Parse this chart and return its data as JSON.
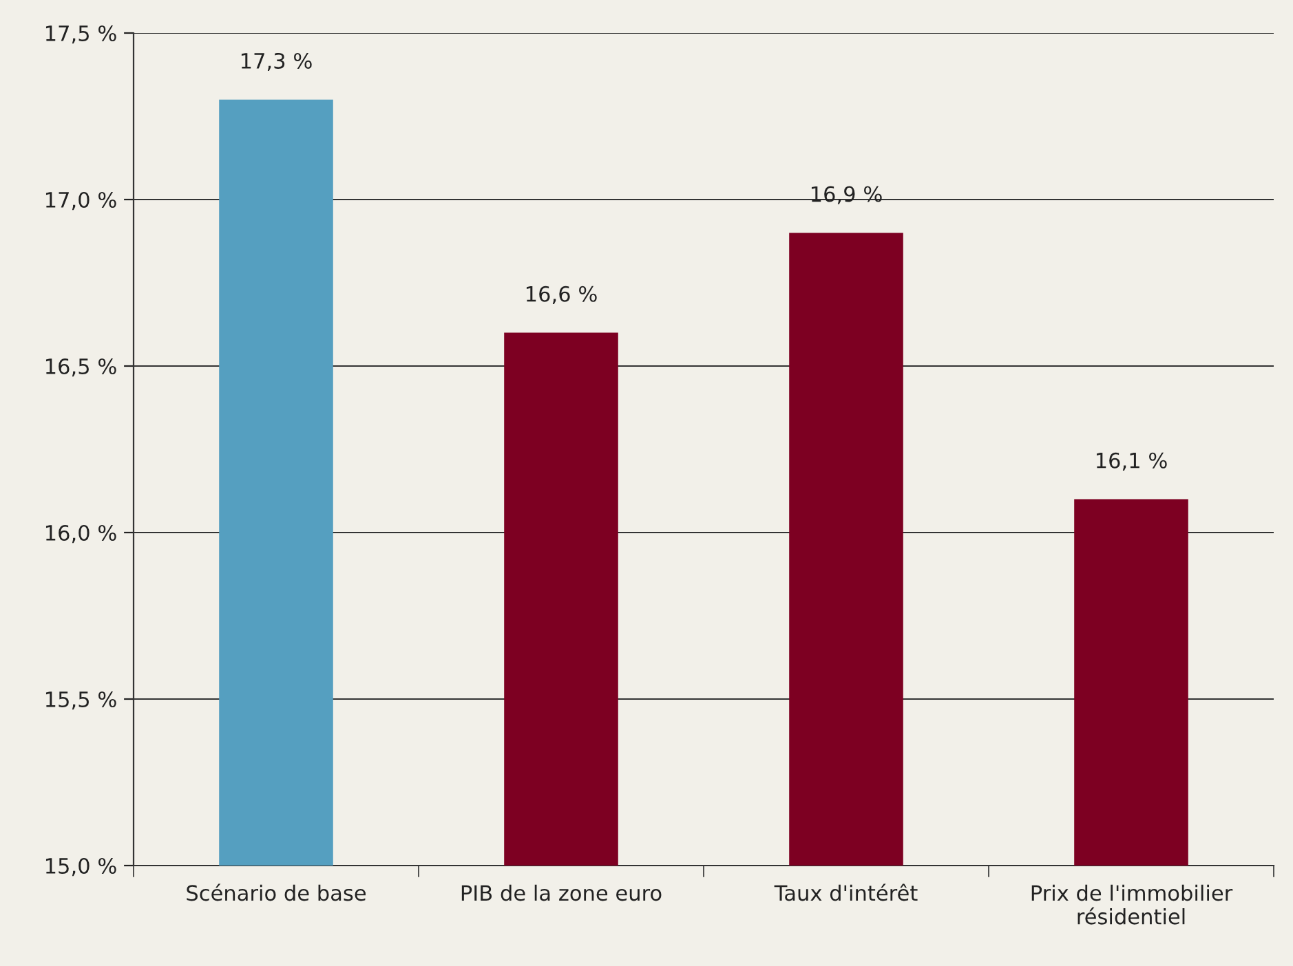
{
  "chart_data": {
    "type": "bar",
    "categories": [
      "Scénario de base",
      "PIB de la zone euro",
      "Taux d'intérêt",
      "Prix de l'immobilier\nrésidentiel"
    ],
    "values": [
      17.3,
      16.6,
      16.9,
      16.1
    ],
    "colors": [
      "#559fc0",
      "#7d0022",
      "#7d0022",
      "#7d0022"
    ],
    "value_labels": [
      "17,3 %",
      "16,6 %",
      "16,9 %",
      "16,1 %"
    ],
    "ylim": [
      15.0,
      17.5
    ],
    "yticks": [
      {
        "value": 15.0,
        "label": "15,0 %"
      },
      {
        "value": 15.5,
        "label": "15,5 %"
      },
      {
        "value": 16.0,
        "label": "16,0 %"
      },
      {
        "value": 16.5,
        "label": "16,5 %"
      },
      {
        "value": 17.0,
        "label": "17,0 %"
      },
      {
        "value": 17.5,
        "label": "17,5 %"
      }
    ],
    "grid": "y",
    "legend": false
  }
}
